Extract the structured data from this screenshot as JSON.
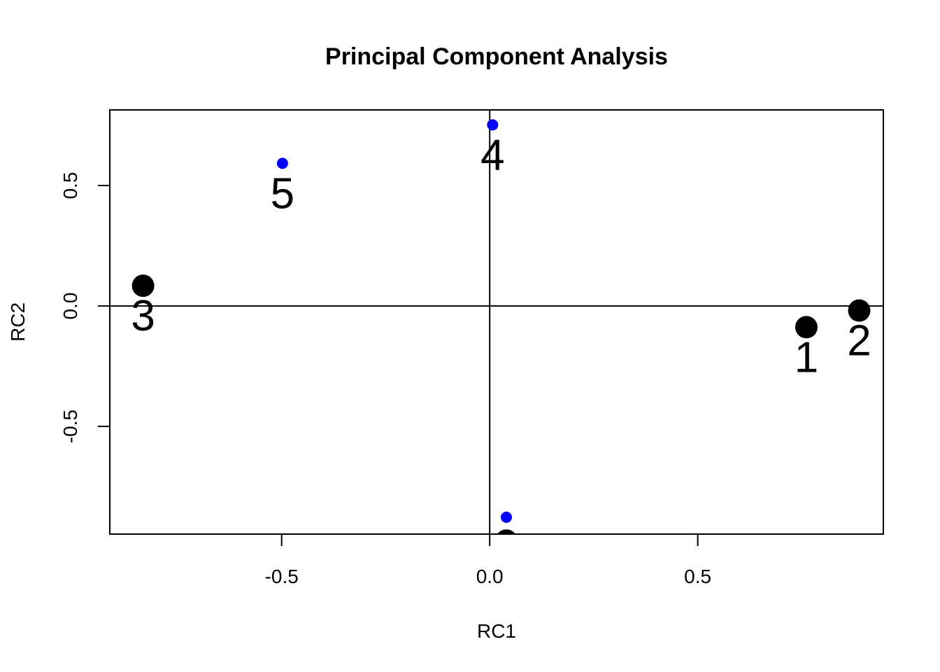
{
  "chart_data": {
    "type": "scatter",
    "title": "Principal Component Analysis",
    "xlabel": "RC1",
    "ylabel": "RC2",
    "xlim": [
      -0.913,
      0.946
    ],
    "ylim": [
      -0.947,
      0.814
    ],
    "x_ticks": [
      {
        "value": -0.5,
        "label": "-0.5"
      },
      {
        "value": 0.0,
        "label": "0.0"
      },
      {
        "value": 0.5,
        "label": "0.5"
      }
    ],
    "y_ticks": [
      {
        "value": -0.5,
        "label": "-0.5"
      },
      {
        "value": 0.0,
        "label": "0.0"
      },
      {
        "value": 0.5,
        "label": "0.5"
      }
    ],
    "reference_lines": {
      "x": 0,
      "y": 0
    },
    "grid": false,
    "series": [
      {
        "color": "#000000",
        "marker": "large-filled-circle",
        "points": [
          {
            "label": "1",
            "x": 0.761,
            "y": -0.088
          },
          {
            "label": "2",
            "x": 0.888,
            "y": -0.019
          },
          {
            "label": "3",
            "x": -0.833,
            "y": 0.084
          },
          {
            "label": "",
            "x": 0.04,
            "y": -0.974
          }
        ]
      },
      {
        "color": "#0000ff",
        "marker": "small-filled-circle",
        "points": [
          {
            "label": "4",
            "x": 0.007,
            "y": 0.752
          },
          {
            "label": "5",
            "x": -0.498,
            "y": 0.592
          },
          {
            "label": "",
            "x": 0.04,
            "y": -0.877
          }
        ]
      }
    ]
  }
}
